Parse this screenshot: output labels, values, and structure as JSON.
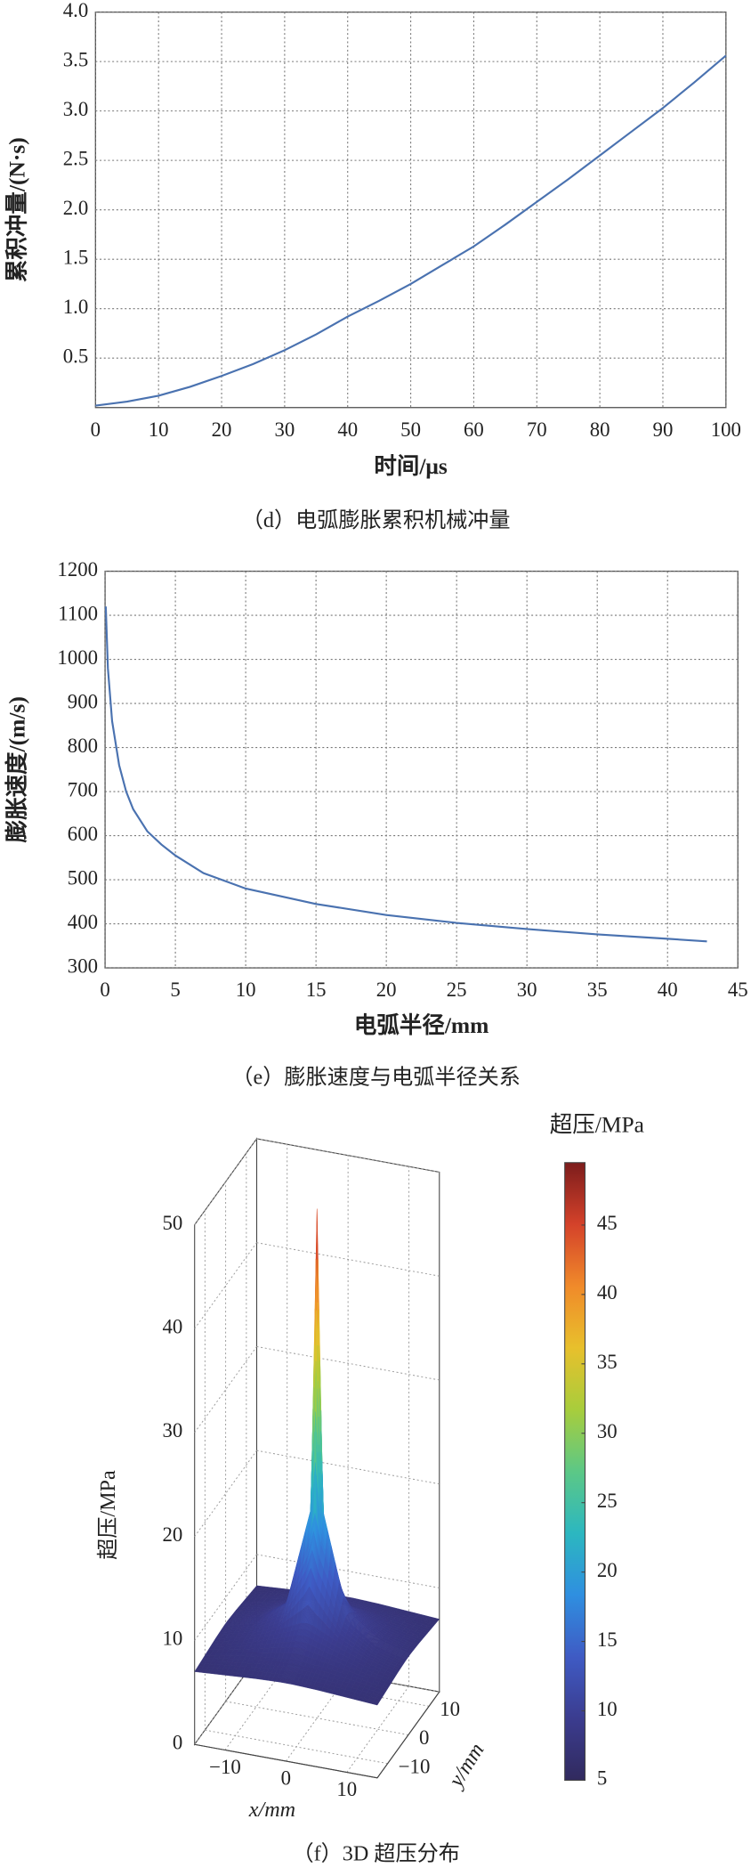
{
  "chart_data": [
    {
      "type": "line",
      "title": "（d）电弧膨胀累积机械冲量",
      "xlabel": "时间/μs",
      "ylabel": "累积冲量/(N·s)",
      "x": [
        0,
        5,
        10,
        15,
        20,
        25,
        30,
        35,
        40,
        45,
        50,
        55,
        60,
        65,
        70,
        75,
        80,
        85,
        90,
        95,
        100
      ],
      "series": [
        {
          "color": "#4a72b0",
          "values": [
            0.02,
            0.06,
            0.12,
            0.21,
            0.32,
            0.44,
            0.58,
            0.74,
            0.92,
            1.08,
            1.25,
            1.44,
            1.63,
            1.85,
            2.08,
            2.31,
            2.55,
            2.79,
            3.03,
            3.29,
            3.56
          ]
        }
      ],
      "xlim": [
        0,
        100
      ],
      "ylim": [
        0,
        4
      ],
      "xticks": [
        0,
        10,
        20,
        30,
        40,
        50,
        60,
        70,
        80,
        90,
        100
      ],
      "yticks": [
        0.5,
        {
          "value": 1,
          "label": "1.0"
        },
        1.5,
        {
          "value": 2,
          "label": "2.0"
        },
        2.5,
        {
          "value": 3,
          "label": "3.0"
        },
        3.5,
        {
          "value": 4,
          "label": "4.0"
        }
      ],
      "grid": true
    },
    {
      "type": "line",
      "title": "（e）膨胀速度与电弧半径关系",
      "xlabel": "电弧半径/mm",
      "ylabel": "膨胀速度/(m/s)",
      "x": [
        0.05,
        0.2,
        0.5,
        1,
        1.5,
        2,
        3,
        4,
        5,
        7,
        10,
        15,
        20,
        25,
        30,
        35,
        40,
        42.8
      ],
      "series": [
        {
          "color": "#4a72b0",
          "values": [
            1120,
            980,
            860,
            760,
            700,
            660,
            610,
            580,
            555,
            515,
            480,
            445,
            420,
            402,
            388,
            376,
            366,
            360
          ]
        }
      ],
      "xlim": [
        0,
        45
      ],
      "ylim": [
        300,
        1200
      ],
      "xticks": [
        0,
        5,
        10,
        15,
        20,
        25,
        30,
        35,
        40,
        45
      ],
      "yticks": [
        300,
        400,
        500,
        600,
        700,
        800,
        900,
        1000,
        1100,
        1200
      ],
      "grid": true
    },
    {
      "type": "surface",
      "title": "（f）3D 超压分布",
      "xlabel": "x/mm",
      "ylabel": "y/mm",
      "zlabel": "超压/MPa",
      "colorbar_label": "超压/MPa",
      "x": [
        -15,
        -10,
        -5,
        -1,
        0,
        1,
        5,
        10,
        15
      ],
      "y": [
        -15,
        -10,
        -5,
        -1,
        0,
        1,
        5,
        10,
        15
      ],
      "z": [
        [
          7.0,
          7.2,
          7.4,
          7.5,
          7.5,
          7.5,
          7.4,
          7.2,
          7.0
        ],
        [
          7.2,
          7.7,
          8.1,
          8.3,
          8.3,
          8.3,
          8.1,
          7.7,
          7.2
        ],
        [
          7.4,
          8.1,
          9.3,
          10.4,
          10.5,
          10.4,
          9.3,
          8.1,
          7.4
        ],
        [
          7.5,
          8.3,
          10.4,
          17,
          20,
          17,
          10.4,
          8.3,
          7.5
        ],
        [
          7.5,
          8.3,
          10.5,
          20,
          49,
          20,
          10.5,
          8.3,
          7.5
        ],
        [
          7.5,
          8.3,
          10.4,
          17,
          20,
          17,
          10.4,
          8.3,
          7.5
        ],
        [
          7.4,
          8.1,
          9.3,
          10.4,
          10.5,
          10.4,
          9.3,
          8.1,
          7.4
        ],
        [
          7.2,
          7.7,
          8.1,
          8.3,
          8.3,
          8.3,
          8.1,
          7.7,
          7.2
        ],
        [
          7.0,
          7.2,
          7.4,
          7.5,
          7.5,
          7.5,
          7.4,
          7.2,
          7.0
        ]
      ],
      "xlim": [
        -15,
        15
      ],
      "ylim": [
        -15,
        15
      ],
      "zlim": [
        0,
        50
      ],
      "xticks": [
        {
          "value": -10,
          "label": "−10"
        },
        0,
        10
      ],
      "yticks": [
        {
          "value": -10,
          "label": "−10"
        },
        0,
        10
      ],
      "zticks": [
        0,
        10,
        20,
        30,
        40,
        50
      ],
      "clim": [
        5,
        49.5
      ],
      "cticks": [
        5,
        10,
        15,
        20,
        25,
        30,
        35,
        40,
        45
      ],
      "colormap": [
        "#312a5e",
        "#3b3c8f",
        "#3f5bc4",
        "#2f8fe0",
        "#2cb7c0",
        "#5cc886",
        "#a8cd3c",
        "#e8c02c",
        "#f08a2a",
        "#d4422a",
        "#7c1c1c"
      ],
      "grid": true
    }
  ]
}
